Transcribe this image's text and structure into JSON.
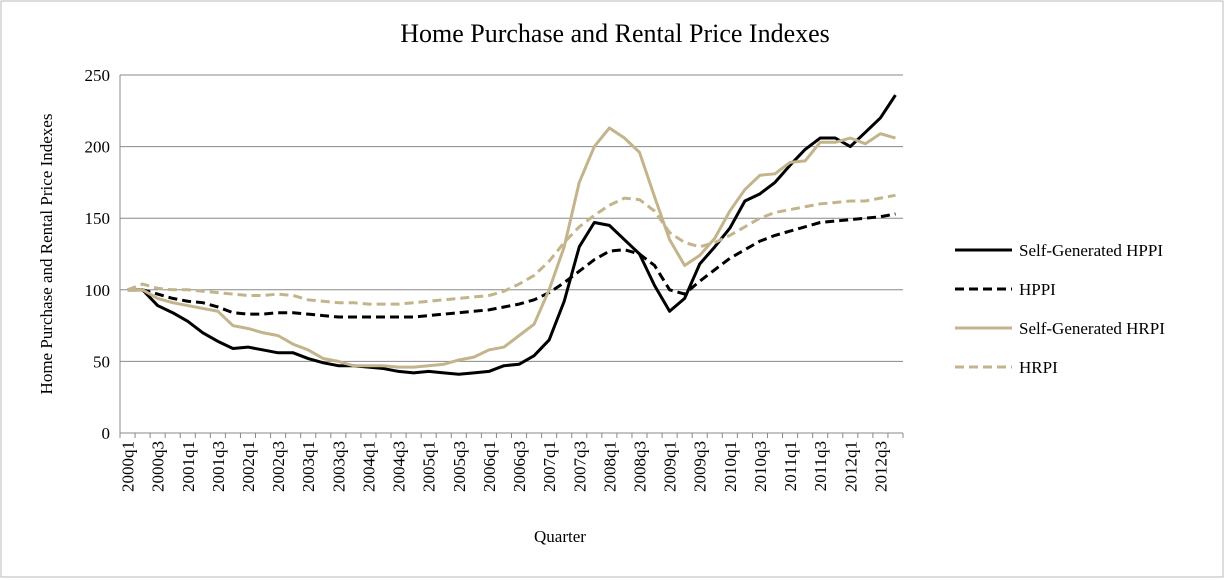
{
  "chart_data": {
    "type": "line",
    "title": "Home Purchase and Rental Price Indexes",
    "x_label": "Quarter",
    "y_label": "Home Purchase and Rental Price Indexes",
    "categories": [
      "2000q1",
      null,
      "2000q3",
      null,
      "2001q1",
      null,
      "2001q3",
      null,
      "2002q1",
      null,
      "2002q3",
      null,
      "2003q1",
      null,
      "2003q3",
      null,
      "2004q1",
      null,
      "2004q3",
      null,
      "2005q1",
      null,
      "2005q3",
      null,
      "2006q1",
      null,
      "2006q3",
      null,
      "2007q1",
      null,
      "2007q3",
      null,
      "2008q1",
      null,
      "2008q3",
      null,
      "2009q1",
      null,
      "2009q3",
      null,
      "2010q1",
      null,
      "2010q3",
      null,
      "2011q1",
      null,
      "2011q3",
      null,
      "2012q1",
      null,
      "2012q3",
      null
    ],
    "series": [
      {
        "name": "Self-Generated HPPI",
        "color": "#000000",
        "dash": false,
        "values": [
          100,
          100,
          89,
          84,
          78,
          70,
          64,
          59,
          60,
          58,
          56,
          56,
          52,
          49,
          47,
          47,
          46,
          45,
          43,
          42,
          43,
          42,
          41,
          42,
          43,
          47,
          48,
          54,
          65,
          92,
          130,
          147,
          145,
          135,
          125,
          103,
          85,
          94,
          118,
          130,
          143,
          162,
          167,
          175,
          187,
          198,
          206,
          206,
          200,
          210,
          220,
          236
        ]
      },
      {
        "name": "HPPI",
        "color": "#000000",
        "dash": true,
        "values": [
          100,
          100,
          97,
          94,
          92,
          91,
          88,
          84,
          83,
          83,
          84,
          84,
          83,
          82,
          81,
          81,
          81,
          81,
          81,
          81,
          82,
          83,
          84,
          85,
          86,
          88,
          90,
          93,
          98,
          105,
          113,
          121,
          127,
          128,
          125,
          117,
          100,
          97,
          106,
          114,
          122,
          128,
          134,
          138,
          141,
          144,
          147,
          148,
          149,
          150,
          151,
          153
        ]
      },
      {
        "name": "Self-Generated HRPI",
        "color": "#c4b48c",
        "dash": false,
        "values": [
          100,
          100,
          94,
          91,
          89,
          87,
          85,
          75,
          73,
          70,
          68,
          62,
          58,
          52,
          50,
          47,
          47,
          47,
          46,
          46,
          47,
          48,
          51,
          53,
          58,
          60,
          68,
          76,
          100,
          130,
          175,
          200,
          213,
          206,
          196,
          165,
          135,
          117,
          124,
          136,
          155,
          170,
          180,
          181,
          189,
          190,
          203,
          203,
          206,
          202,
          209,
          206
        ]
      },
      {
        "name": "HRPI",
        "color": "#c4b48c",
        "dash": true,
        "values": [
          100,
          104,
          101,
          100,
          100,
          99,
          98,
          97,
          96,
          96,
          97,
          96,
          93,
          92,
          91,
          91,
          90,
          90,
          90,
          91,
          92,
          93,
          94,
          95,
          96,
          99,
          104,
          110,
          120,
          133,
          144,
          152,
          159,
          164,
          163,
          155,
          140,
          133,
          130,
          133,
          138,
          144,
          150,
          154,
          156,
          158,
          160,
          161,
          162,
          162,
          164,
          166
        ]
      }
    ],
    "ylim": [
      0,
      250
    ],
    "yticks": [
      0,
      50,
      100,
      150,
      200,
      250
    ],
    "grid": true,
    "legend": "right"
  }
}
